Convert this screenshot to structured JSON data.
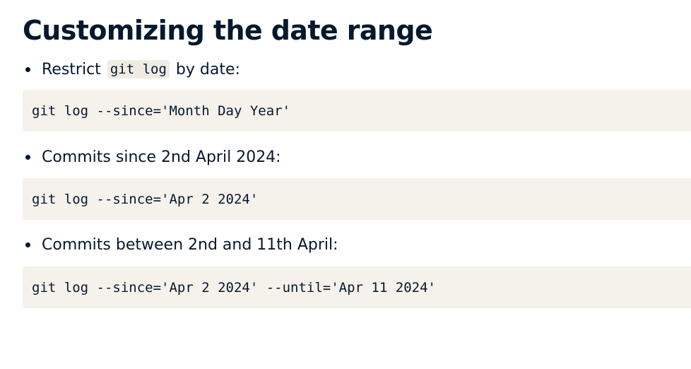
{
  "slide": {
    "title": "Customizing the date range",
    "items": [
      {
        "text_before": "Restrict",
        "inline_code": "git log",
        "text_after": "by date:",
        "code": "git log --since='Month Day Year'"
      },
      {
        "text": "Commits since 2nd April 2024:",
        "code": "git log --since='Apr 2 2024'"
      },
      {
        "text": "Commits between 2nd and 11th April:",
        "code": "git log --since='Apr 2 2024' --until='Apr 11 2024'"
      }
    ]
  },
  "colors": {
    "text": "#05192d",
    "code_background": "#f5f1eb",
    "inline_code_background": "#efece6"
  }
}
